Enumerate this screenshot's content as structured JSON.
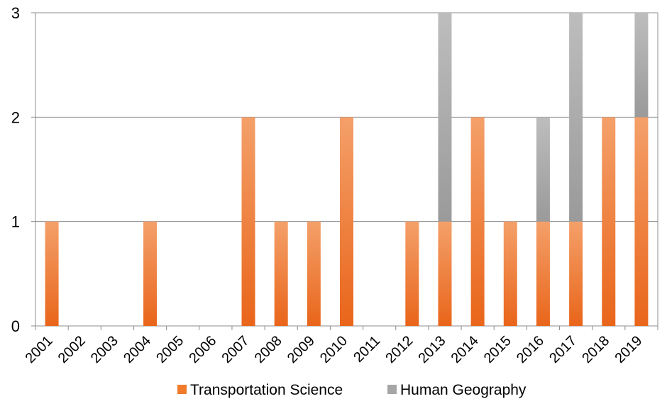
{
  "chart_data": {
    "type": "bar",
    "stacked": true,
    "categories": [
      "2001",
      "2002",
      "2003",
      "2004",
      "2005",
      "2006",
      "2007",
      "2008",
      "2009",
      "2010",
      "2011",
      "2012",
      "2013",
      "2014",
      "2015",
      "2016",
      "2017",
      "2018",
      "2019"
    ],
    "series": [
      {
        "name": "Transportation Science",
        "values": [
          1,
          0,
          0,
          1,
          0,
          0,
          2,
          1,
          1,
          2,
          0,
          1,
          1,
          2,
          1,
          1,
          1,
          2,
          2
        ],
        "color": "#f07b2a"
      },
      {
        "name": "Human Geography",
        "values": [
          0,
          0,
          0,
          0,
          0,
          0,
          0,
          0,
          0,
          0,
          0,
          0,
          2,
          0,
          0,
          1,
          2,
          0,
          1
        ],
        "color": "#a6a6a6"
      }
    ],
    "ylim": [
      0,
      3
    ],
    "yticks": [
      "0",
      "1",
      "2",
      "3"
    ],
    "grid": true,
    "legend_position": "bottom",
    "title": "",
    "xlabel": "",
    "ylabel": ""
  }
}
